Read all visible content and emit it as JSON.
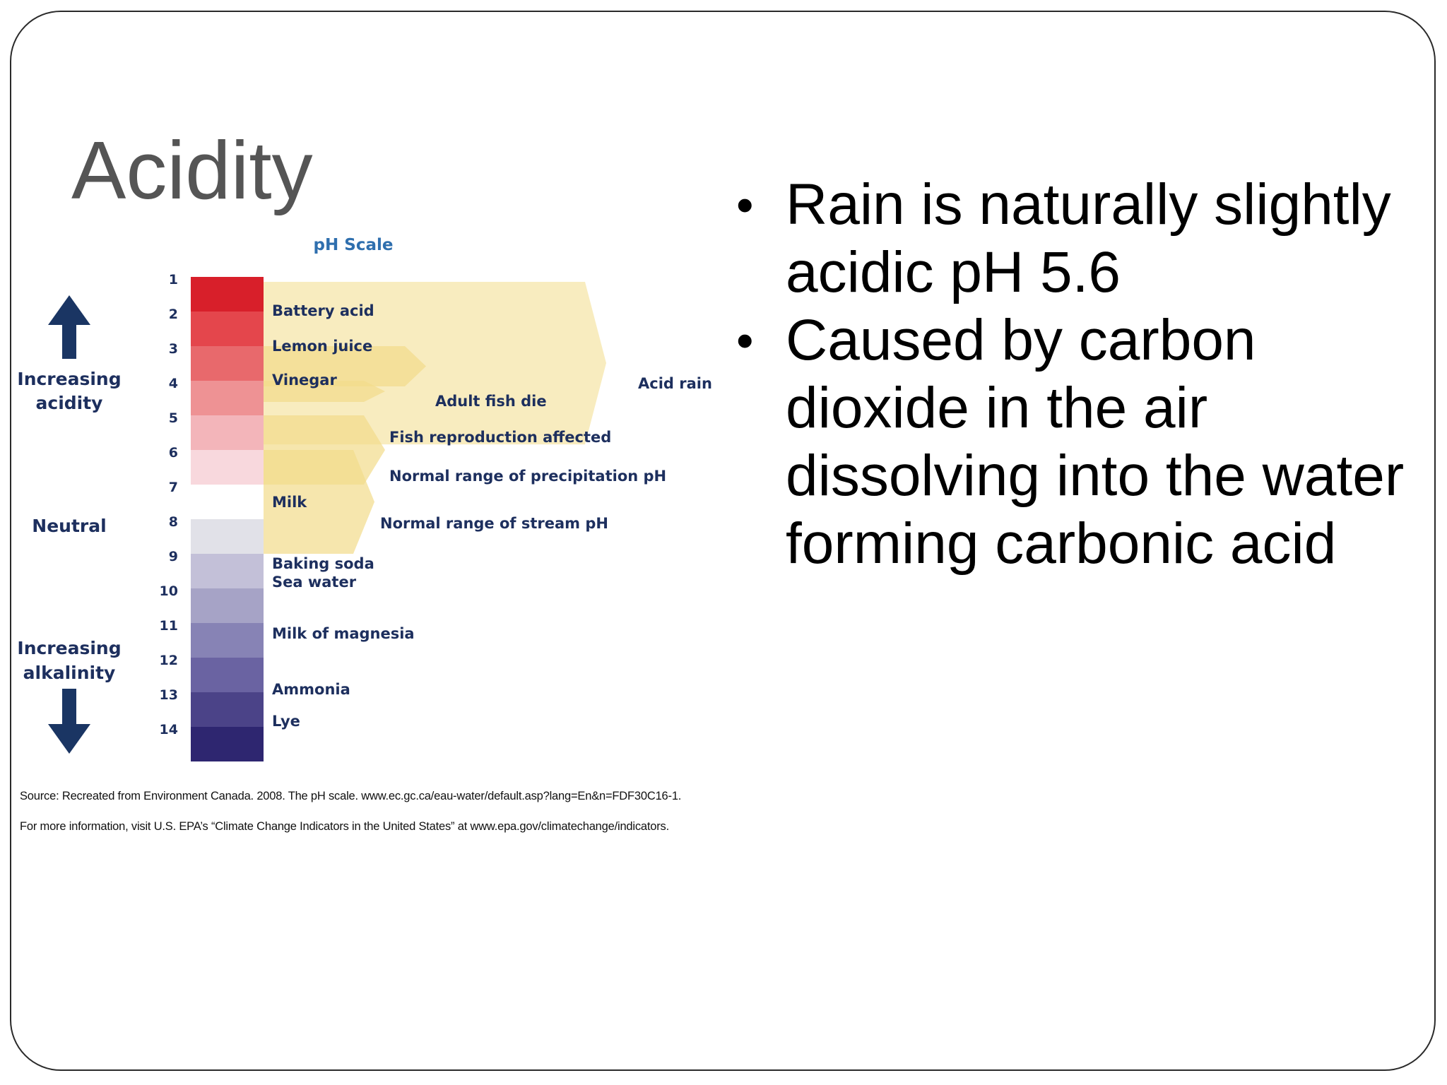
{
  "slide": {
    "title": "Acidity",
    "bullets": [
      "Rain is naturally slightly acidic pH 5.6",
      "Caused by carbon dioxide in the air dissolving into the water forming carbonic acid"
    ]
  },
  "diagram": {
    "title": "pH Scale",
    "scale_numbers": [
      "1",
      "2",
      "3",
      "4",
      "5",
      "6",
      "7",
      "8",
      "9",
      "10",
      "11",
      "12",
      "13",
      "14"
    ],
    "segment_colors": [
      "#d81f2a",
      "#e4464c",
      "#e8696c",
      "#ee9294",
      "#f3b5ba",
      "#f8d8dd",
      "#ffffff",
      "#e1e1e8",
      "#c3c0d8",
      "#a6a3c6",
      "#8783b5",
      "#6a63a2",
      "#4b4388",
      "#2e2670"
    ],
    "side_labels": {
      "acidity_line1": "Increasing",
      "acidity_line2": "acidity",
      "neutral": "Neutral",
      "alkalinity_line1": "Increasing",
      "alkalinity_line2": "alkalinity"
    },
    "substances": [
      {
        "label": "Battery acid",
        "ph": 1
      },
      {
        "label": "Lemon juice",
        "ph": 2
      },
      {
        "label": "Vinegar",
        "ph": 3
      },
      {
        "label": "Milk",
        "ph": 6.5
      },
      {
        "label": "Baking soda",
        "ph": 8.5
      },
      {
        "label": "Sea water",
        "ph": 9
      },
      {
        "label": "Milk of magnesia",
        "ph": 10.5
      },
      {
        "label": "Ammonia",
        "ph": 12
      },
      {
        "label": "Lye",
        "ph": 13
      }
    ],
    "ranges": [
      {
        "label": "Acid rain",
        "from_ph": 1,
        "to_ph": 4.9
      },
      {
        "label": "Adult fish die",
        "from_ph": 3,
        "to_ph": 4
      },
      {
        "label": "Fish reproduction affected",
        "from_ph": 4,
        "to_ph": 4.5
      },
      {
        "label": "Normal range of precipitation pH",
        "from_ph": 5,
        "to_ph": 6
      },
      {
        "label": "Normal range of stream pH",
        "from_ph": 6,
        "to_ph": 8
      }
    ],
    "range_color": "#f2dc8a",
    "label_color": "#1d2f5e",
    "title_color": "#2f6fae",
    "arrow_color": "#1a3563",
    "source_line": "Source: Recreated from Environment Canada. 2008. The pH scale. www.ec.gc.ca/eau-water/default.asp?lang=En&n=FDF30C16-1.",
    "info_line": "For more information, visit U.S. EPA’s “Climate Change Indicators in the United States” at www.epa.gov/climatechange/indicators."
  }
}
